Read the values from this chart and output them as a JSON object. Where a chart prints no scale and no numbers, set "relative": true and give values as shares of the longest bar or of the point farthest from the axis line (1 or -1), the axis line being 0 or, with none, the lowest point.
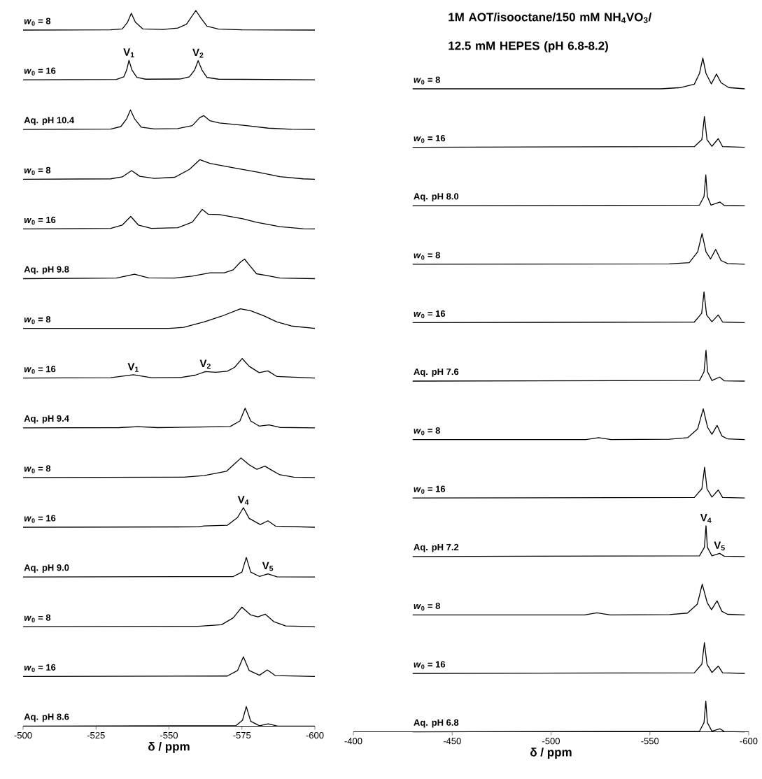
{
  "chart_data": [
    {
      "type": "line",
      "relative": true,
      "xlim": [
        -500,
        -600
      ],
      "tick_labels": false,
      "series": [
        {
          "name": "*w*$_{0}$ = 8",
          "color": "#000000",
          "x": [
            -500,
            -530,
            -534,
            -535.8,
            -537.1,
            -538.5,
            -541,
            -548,
            -553,
            -556,
            -559.2,
            -561,
            -563,
            -567,
            -575,
            -600
          ],
          "values": [
            0,
            0.01,
            0.06,
            0.4,
            0.86,
            0.4,
            0.06,
            0.03,
            0.1,
            0.3,
            1,
            0.6,
            0.2,
            0.05,
            0.01,
            0
          ]
        }
      ]
    },
    {
      "type": "line",
      "relative": true,
      "xlim": [
        -500,
        -600
      ],
      "tick_labels": false,
      "annotations": [
        {
          "text": "V$_{1}$",
          "x": -536.3,
          "y": 1
        },
        {
          "text": "V$_{2}$",
          "x": -560,
          "y": 0.98
        }
      ],
      "series": [
        {
          "name": "*w*$_{0}$ = 16",
          "color": "#000000",
          "x": [
            -500,
            -532,
            -534.5,
            -535.5,
            -536.3,
            -537.3,
            -539,
            -542,
            -554,
            -557,
            -558.8,
            -560,
            -561.3,
            -563,
            -567,
            -600
          ],
          "values": [
            0,
            0.02,
            0.15,
            0.5,
            1,
            0.5,
            0.12,
            0.03,
            0.04,
            0.15,
            0.5,
            0.98,
            0.5,
            0.12,
            0.03,
            0
          ]
        }
      ]
    },
    {
      "type": "line",
      "relative": true,
      "xlim": [
        -500,
        -600
      ],
      "tick_labels": false,
      "series": [
        {
          "name": "Aq. pH 10.4",
          "color": "#000000",
          "x": [
            -500,
            -530,
            -533.5,
            -535.5,
            -536.8,
            -538.2,
            -540.5,
            -545,
            -553,
            -558,
            -560.5,
            -561.9,
            -564,
            -567.3,
            -576,
            -584,
            -592,
            -600
          ],
          "values": [
            0,
            0.02,
            0.15,
            0.55,
            1,
            0.55,
            0.12,
            0.03,
            0.05,
            0.2,
            0.6,
            0.71,
            0.45,
            0.33,
            0.21,
            0.07,
            0.01,
            0
          ]
        }
      ]
    },
    {
      "type": "line",
      "relative": true,
      "xlim": [
        -500,
        -600
      ],
      "tick_labels": false,
      "series": [
        {
          "name": "*w*$_{0}$ = 8",
          "color": "#000000",
          "x": [
            -500,
            -530,
            -534,
            -537.2,
            -540,
            -545,
            -552,
            -557,
            -560.6,
            -564,
            -572,
            -580,
            -588,
            -596,
            -600
          ],
          "values": [
            0,
            0.02,
            0.12,
            0.44,
            0.15,
            0.04,
            0.1,
            0.5,
            1,
            0.81,
            0.59,
            0.37,
            0.13,
            0.02,
            0
          ]
        }
      ]
    },
    {
      "type": "line",
      "relative": true,
      "xlim": [
        -500,
        -600
      ],
      "tick_labels": false,
      "series": [
        {
          "name": "*w*$_{0}$ = 16",
          "color": "#000000",
          "x": [
            -500,
            -530,
            -534,
            -536.9,
            -539.5,
            -544,
            -553,
            -558,
            -561.4,
            -563.5,
            -567.3,
            -575.3,
            -580,
            -588,
            -596,
            -600
          ],
          "values": [
            0,
            0.03,
            0.2,
            0.64,
            0.2,
            0.03,
            0.06,
            0.35,
            1,
            0.75,
            0.73,
            0.52,
            0.34,
            0.12,
            0.01,
            0
          ]
        }
      ]
    },
    {
      "type": "line",
      "relative": true,
      "xlim": [
        -500,
        -600
      ],
      "tick_labels": false,
      "series": [
        {
          "name": "Aq. pH 9.8",
          "color": "#000000",
          "x": [
            -500,
            -532,
            -538.2,
            -543,
            -552,
            -558,
            -564.1,
            -569,
            -572,
            -574.5,
            -575.9,
            -577.5,
            -580,
            -584,
            -588,
            -600
          ],
          "values": [
            0,
            0.03,
            0.23,
            0.04,
            0.03,
            0.13,
            0.3,
            0.3,
            0.45,
            0.85,
            1,
            0.7,
            0.25,
            0.15,
            0.03,
            0
          ]
        }
      ]
    },
    {
      "type": "line",
      "relative": true,
      "xlim": [
        -500,
        -600
      ],
      "tick_labels": false,
      "series": [
        {
          "name": "*w*$_{0}$ = 8",
          "color": "#000000",
          "x": [
            -500,
            -550,
            -555,
            -562,
            -568,
            -574.5,
            -578,
            -582.5,
            -587,
            -592,
            -600
          ],
          "values": [
            0,
            0,
            0.05,
            0.33,
            0.62,
            1,
            0.9,
            0.64,
            0.33,
            0.12,
            0
          ]
        }
      ]
    },
    {
      "type": "line",
      "relative": true,
      "xlim": [
        -500,
        -600
      ],
      "tick_labels": false,
      "annotations": [
        {
          "text": "V$_{1}$",
          "x": -537.8,
          "y": 0.17
        },
        {
          "text": "V$_{2}$",
          "x": -562.5,
          "y": 0.33
        }
      ],
      "series": [
        {
          "name": "*w*$_{0}$ = 16",
          "color": "#000000",
          "x": [
            -500,
            -530,
            -537.8,
            -544,
            -554,
            -559,
            -562.5,
            -566,
            -570,
            -572.5,
            -575.1,
            -577.5,
            -580.9,
            -583.9,
            -587,
            -600
          ],
          "values": [
            0,
            0.02,
            0.17,
            0.02,
            0.03,
            0.15,
            0.33,
            0.3,
            0.35,
            0.55,
            1,
            0.6,
            0.28,
            0.37,
            0.08,
            0
          ]
        }
      ]
    },
    {
      "type": "line",
      "relative": true,
      "xlim": [
        -500,
        -600
      ],
      "tick_labels": false,
      "series": [
        {
          "name": "Aq. pH 9.4",
          "color": "#000000",
          "x": [
            -500,
            -533,
            -539.4,
            -546,
            -561,
            -571,
            -574.3,
            -576.1,
            -578,
            -580.9,
            -584.3,
            -588,
            -600
          ],
          "values": [
            0,
            0.01,
            0.06,
            0.01,
            0.04,
            0.07,
            0.35,
            1,
            0.35,
            0.09,
            0.15,
            0.02,
            0
          ]
        }
      ]
    },
    {
      "type": "line",
      "relative": true,
      "xlim": [
        -500,
        -600
      ],
      "tick_labels": false,
      "series": [
        {
          "name": "*w*$_{0}$ = 8",
          "color": "#000000",
          "x": [
            -500,
            -555,
            -562,
            -569.7,
            -572.5,
            -574.7,
            -577.5,
            -580.1,
            -582.9,
            -585.5,
            -588,
            -592.8,
            -600
          ],
          "values": [
            0,
            0.02,
            0.1,
            0.32,
            0.7,
            1,
            0.65,
            0.42,
            0.58,
            0.35,
            0.14,
            0.02,
            0
          ]
        }
      ]
    },
    {
      "type": "line",
      "relative": true,
      "xlim": [
        -500,
        -600
      ],
      "tick_labels": false,
      "annotations": [
        {
          "text": "V$_{4}$",
          "x": -575.5,
          "y": 1
        }
      ],
      "series": [
        {
          "name": "*w*$_{0}$ = 16",
          "color": "#000000",
          "x": [
            -500,
            -560,
            -562,
            -570,
            -573.5,
            -575.5,
            -577.5,
            -581.3,
            -583.9,
            -586.5,
            -600
          ],
          "values": [
            0,
            0.02,
            0.07,
            0.1,
            0.5,
            1,
            0.45,
            0.14,
            0.33,
            0.06,
            0
          ]
        }
      ]
    },
    {
      "type": "line",
      "relative": true,
      "xlim": [
        -500,
        -600
      ],
      "tick_labels": false,
      "annotations": [
        {
          "text": "V$_{5}$",
          "x": -583.9,
          "y": 0.16
        }
      ],
      "series": [
        {
          "name": "Aq. pH 9.0",
          "color": "#000000",
          "x": [
            -500,
            -572,
            -575,
            -576.5,
            -578,
            -581,
            -583.9,
            -587,
            -600
          ],
          "values": [
            0,
            0.02,
            0.25,
            1,
            0.25,
            0.03,
            0.16,
            0.01,
            0
          ]
        }
      ]
    },
    {
      "type": "line",
      "relative": true,
      "xlim": [
        -500,
        -600
      ],
      "tick_labels": false,
      "series": [
        {
          "name": "*w*$_{0}$ = 8",
          "color": "#000000",
          "x": [
            -500,
            -560,
            -568,
            -572,
            -575,
            -578,
            -580.5,
            -583,
            -586,
            -590,
            -600
          ],
          "values": [
            0,
            0.02,
            0.1,
            0.45,
            1,
            0.6,
            0.5,
            0.64,
            0.25,
            0.04,
            0
          ]
        }
      ]
    },
    {
      "type": "line",
      "relative": true,
      "xlim": [
        -500,
        -600
      ],
      "tick_labels": false,
      "series": [
        {
          "name": "*w*$_{0}$ = 16",
          "color": "#000000",
          "x": [
            -500,
            -570,
            -573.5,
            -575.5,
            -577.5,
            -581,
            -583.7,
            -586.5,
            -600
          ],
          "values": [
            0,
            0.02,
            0.3,
            1,
            0.3,
            0.06,
            0.33,
            0.04,
            0
          ]
        }
      ]
    },
    {
      "type": "line",
      "relative": true,
      "xlim": [
        -500,
        -600
      ],
      "tick_labels": "x",
      "xticks": [
        -500,
        -525,
        -550,
        -575,
        -600
      ],
      "xlabel": "δ / ppm",
      "series": [
        {
          "name": "Aq. pH 8.6",
          "color": "#000000",
          "x": [
            -500,
            -573,
            -575.2,
            -576.5,
            -578,
            -581,
            -584,
            -587,
            -600
          ],
          "values": [
            0,
            0.03,
            0.3,
            1,
            0.25,
            0.02,
            0.12,
            0.01,
            0
          ]
        }
      ]
    },
    {
      "type": "line",
      "relative": true,
      "xlim": [
        -400,
        -600
      ],
      "tick_labels": false,
      "title": "1M AOT/isooctane/150 mM NH$_{4}$VO$_{3}$/ 12.5 mM HEPES (pH 6.8-8.2)",
      "series": [
        {
          "name": "*w*$_{0}$ = 8",
          "color": "#000000",
          "x": [
            -430,
            -555.6,
            -565.7,
            -572.5,
            -575.1,
            -576.8,
            -578.4,
            -581.1,
            -583.7,
            -586,
            -589.9,
            -598
          ],
          "values": [
            0,
            0,
            0.04,
            0.15,
            0.5,
            1,
            0.5,
            0.16,
            0.48,
            0.2,
            0.04,
            0
          ]
        }
      ]
    },
    {
      "type": "line",
      "relative": true,
      "xlim": [
        -400,
        -600
      ],
      "tick_labels": false,
      "series": [
        {
          "name": "*w*$_{0}$ = 16",
          "color": "#000000",
          "x": [
            -430,
            -572.5,
            -576.3,
            -577.6,
            -578.9,
            -581.4,
            -584.6,
            -586.8,
            -598
          ],
          "values": [
            0,
            0.02,
            0.25,
            1,
            0.25,
            0.03,
            0.28,
            0.02,
            0
          ]
        }
      ]
    },
    {
      "type": "line",
      "relative": true,
      "xlim": [
        -400,
        -600
      ],
      "tick_labels": false,
      "series": [
        {
          "name": "Aq. pH 8.0",
          "color": "#000000",
          "x": [
            -430,
            -575.1,
            -577.4,
            -578.3,
            -579.1,
            -580.9,
            -585.5,
            -587.6,
            -598
          ],
          "values": [
            0,
            0.02,
            0.3,
            1,
            0.3,
            0.02,
            0.12,
            0.01,
            0
          ]
        }
      ]
    },
    {
      "type": "line",
      "relative": true,
      "xlim": [
        -400,
        -600
      ],
      "tick_labels": false,
      "series": [
        {
          "name": "*w*$_{0}$ = 8",
          "color": "#000000",
          "x": [
            -430,
            -559.8,
            -569.9,
            -574.2,
            -576.4,
            -578.4,
            -580.7,
            -583.3,
            -586,
            -589.3,
            -598
          ],
          "values": [
            0,
            0.01,
            0.05,
            0.4,
            1,
            0.4,
            0.17,
            0.48,
            0.12,
            0.02,
            0
          ]
        }
      ]
    },
    {
      "type": "line",
      "relative": true,
      "xlim": [
        -400,
        -600
      ],
      "tick_labels": false,
      "series": [
        {
          "name": "*w*$_{0}$ = 16",
          "color": "#000000",
          "x": [
            -430,
            -572.5,
            -576.2,
            -577.4,
            -578.7,
            -581.4,
            -584.6,
            -586.8,
            -598
          ],
          "values": [
            0,
            0.02,
            0.3,
            1,
            0.25,
            0.03,
            0.25,
            0.02,
            0
          ]
        }
      ]
    },
    {
      "type": "line",
      "relative": true,
      "xlim": [
        -400,
        -600
      ],
      "tick_labels": false,
      "series": [
        {
          "name": "Aq. pH 7.6",
          "color": "#000000",
          "x": [
            -430,
            -575.1,
            -577.4,
            -578.4,
            -579.2,
            -581.4,
            -585.3,
            -587.6,
            -598
          ],
          "values": [
            0,
            0.02,
            0.3,
            1,
            0.3,
            0.02,
            0.13,
            0.01,
            0
          ]
        }
      ]
    },
    {
      "type": "line",
      "relative": true,
      "xlim": [
        -400,
        -600
      ],
      "tick_labels": false,
      "series": [
        {
          "name": "*w*$_{0}$ = 8",
          "color": "#000000",
          "x": [
            -430,
            -517.7,
            -524.1,
            -530.4,
            -559.8,
            -569.1,
            -574.2,
            -577,
            -579.2,
            -581.4,
            -584,
            -586.4,
            -589.3,
            -598
          ],
          "values": [
            0,
            0,
            0.06,
            0,
            0.01,
            0.06,
            0.35,
            1,
            0.4,
            0.17,
            0.46,
            0.12,
            0.02,
            0
          ]
        }
      ]
    },
    {
      "type": "line",
      "relative": true,
      "xlim": [
        -400,
        -600
      ],
      "tick_labels": false,
      "series": [
        {
          "name": "*w*$_{0}$ = 16",
          "color": "#000000",
          "x": [
            -430,
            -572.5,
            -576.3,
            -577.7,
            -578.9,
            -581.4,
            -584.6,
            -586.8,
            -598
          ],
          "values": [
            0,
            0.02,
            0.3,
            1,
            0.3,
            0.03,
            0.26,
            0.02,
            0
          ]
        }
      ]
    },
    {
      "type": "line",
      "relative": true,
      "xlim": [
        -400,
        -600
      ],
      "tick_labels": false,
      "annotations": [
        {
          "text": "V$_{4}$",
          "x": -578.4,
          "y": 1
        },
        {
          "text": "V$_{5}$",
          "x": -585.3,
          "y": 0.1
        }
      ],
      "series": [
        {
          "name": "Aq. pH 7.2",
          "color": "#000000",
          "x": [
            -430,
            -575.1,
            -577.6,
            -578.4,
            -579.1,
            -581.4,
            -585.3,
            -587.6,
            -598
          ],
          "values": [
            0,
            0.02,
            0.3,
            1,
            0.3,
            0.02,
            0.1,
            0.01,
            0
          ]
        }
      ]
    },
    {
      "type": "line",
      "relative": true,
      "xlim": [
        -400,
        -600
      ],
      "tick_labels": false,
      "series": [
        {
          "name": "*w*$_{0}$ = 8",
          "color": "#000000",
          "x": [
            -430,
            -517,
            -523.2,
            -530,
            -560,
            -569,
            -574,
            -576.5,
            -579,
            -581.2,
            -584,
            -586.4,
            -589.3,
            -598
          ],
          "values": [
            0,
            0,
            0.07,
            0,
            0.01,
            0.06,
            0.35,
            1,
            0.4,
            0.17,
            0.46,
            0.12,
            0.02,
            0
          ]
        }
      ]
    },
    {
      "type": "line",
      "relative": true,
      "xlim": [
        -400,
        -600
      ],
      "tick_labels": false,
      "series": [
        {
          "name": "*w*$_{0}$ = 16",
          "color": "#000000",
          "x": [
            -430,
            -572.5,
            -576.3,
            -577.6,
            -578.9,
            -581.4,
            -584.6,
            -586.8,
            -598
          ],
          "values": [
            0,
            0.02,
            0.3,
            1,
            0.3,
            0.03,
            0.24,
            0.02,
            0
          ]
        }
      ]
    },
    {
      "type": "line",
      "relative": true,
      "xlim": [
        -400,
        -600
      ],
      "tick_labels": "x",
      "xticks": [
        -400,
        -450,
        -500,
        -550,
        -600
      ],
      "xlabel": "δ / ppm",
      "series": [
        {
          "name": "Aq. pH 6.8",
          "color": "#000000",
          "x": [
            -430,
            -575.1,
            -577.4,
            -578.3,
            -579.1,
            -581.4,
            -585.5,
            -587.6,
            -598
          ],
          "values": [
            0,
            0.02,
            0.3,
            1,
            0.3,
            0.02,
            0.1,
            0.01,
            0
          ]
        }
      ]
    }
  ]
}
